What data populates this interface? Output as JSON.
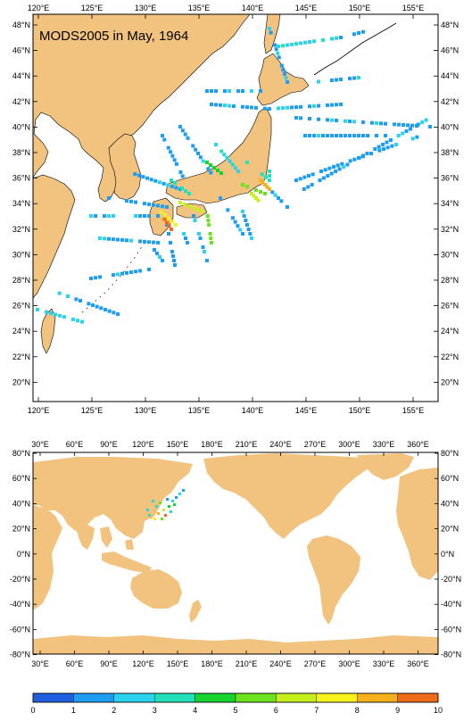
{
  "title": "MODS2005 in May, 1964",
  "colors": {
    "land": "#f2c27f",
    "ocean": "#ffffff",
    "coast": "#000000",
    "frame": "#000000"
  },
  "top_map": {
    "lon_labels": [
      "120°E",
      "125°E",
      "130°E",
      "135°E",
      "140°E",
      "145°E",
      "150°E",
      "155°E"
    ],
    "lat_labels": [
      "48°N",
      "46°N",
      "44°N",
      "42°N",
      "40°N",
      "38°N",
      "36°N",
      "34°N",
      "32°N",
      "30°N",
      "28°N",
      "26°N",
      "24°N",
      "22°N",
      "20°N"
    ]
  },
  "bottom_map": {
    "lon_labels": [
      "30°E",
      "60°E",
      "90°E",
      "120°E",
      "150°E",
      "180°E",
      "210°E",
      "240°E",
      "270°E",
      "300°E",
      "330°E",
      "360°E"
    ],
    "lat_labels": [
      "80°N",
      "60°N",
      "40°N",
      "20°N",
      "0°N",
      "-20°N",
      "-40°N",
      "-60°N",
      "-80°N"
    ]
  },
  "colorbar": {
    "labels": [
      "0",
      "1",
      "2",
      "3",
      "4",
      "5",
      "6",
      "7",
      "8",
      "9",
      "10"
    ],
    "colors": [
      "#1f5fe0",
      "#1d9ef2",
      "#2ad3ee",
      "#22e0b8",
      "#18d42e",
      "#6de11d",
      "#c6ef1b",
      "#f7f21a",
      "#f6b21a",
      "#ef6a1a"
    ]
  }
}
